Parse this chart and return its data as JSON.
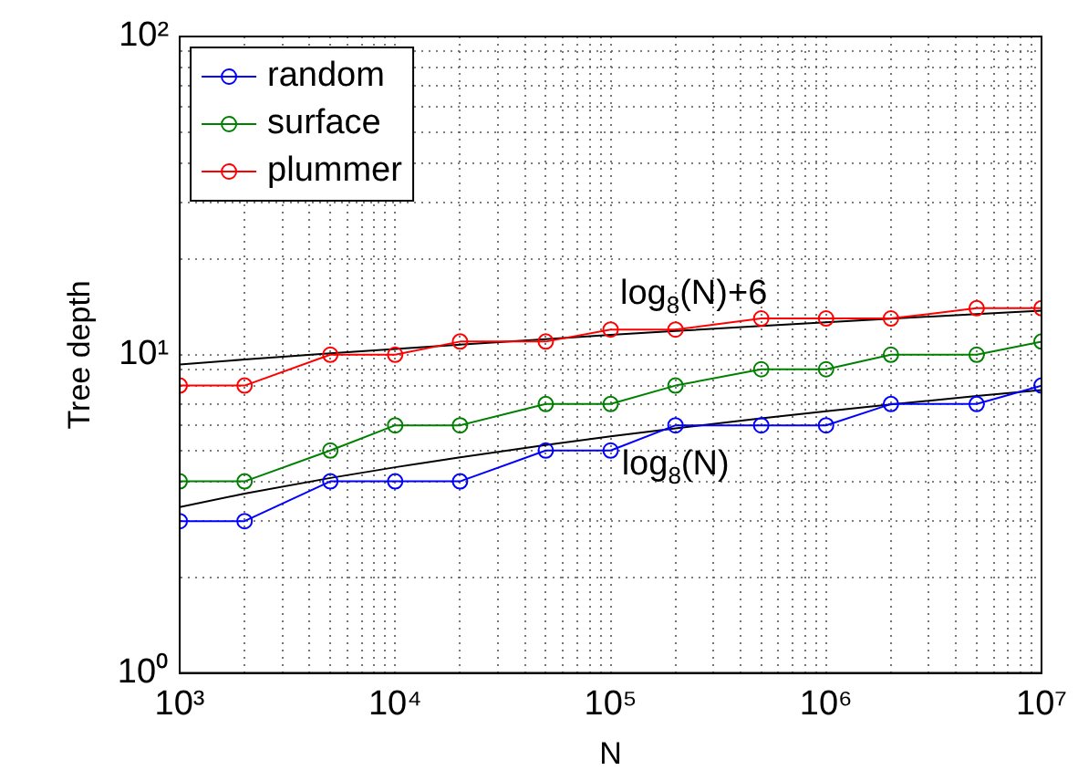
{
  "chart_data": {
    "type": "line",
    "xlabel": "N",
    "ylabel": "Tree depth",
    "log": "xy",
    "grid": true,
    "legend": "top left",
    "marker": "circle",
    "line_style": "solid",
    "x": [
      1000,
      2000,
      5000,
      10000,
      20000,
      50000,
      100000,
      200000,
      500000,
      1000000,
      2000000,
      5000000,
      10000000
    ],
    "xlim": [
      1000,
      10000000
    ],
    "ylim": [
      1,
      100
    ],
    "xticks": [
      {
        "value": 1000,
        "label": "10³"
      },
      {
        "value": 2000,
        "label": null
      },
      {
        "value": 3000,
        "label": null
      },
      {
        "value": 4000,
        "label": null
      },
      {
        "value": 5000,
        "label": null
      },
      {
        "value": 6000,
        "label": null
      },
      {
        "value": 7000,
        "label": null
      },
      {
        "value": 8000,
        "label": null
      },
      {
        "value": 9000,
        "label": null
      },
      {
        "value": 10000,
        "label": "10⁴"
      },
      {
        "value": 20000,
        "label": null
      },
      {
        "value": 30000,
        "label": null
      },
      {
        "value": 40000,
        "label": null
      },
      {
        "value": 50000,
        "label": null
      },
      {
        "value": 60000,
        "label": null
      },
      {
        "value": 70000,
        "label": null
      },
      {
        "value": 80000,
        "label": null
      },
      {
        "value": 90000,
        "label": null
      },
      {
        "value": 100000,
        "label": "10⁵"
      },
      {
        "value": 200000,
        "label": null
      },
      {
        "value": 300000,
        "label": null
      },
      {
        "value": 400000,
        "label": null
      },
      {
        "value": 500000,
        "label": null
      },
      {
        "value": 600000,
        "label": null
      },
      {
        "value": 700000,
        "label": null
      },
      {
        "value": 800000,
        "label": null
      },
      {
        "value": 900000,
        "label": null
      },
      {
        "value": 1000000,
        "label": "10⁶"
      },
      {
        "value": 2000000,
        "label": null
      },
      {
        "value": 3000000,
        "label": null
      },
      {
        "value": 4000000,
        "label": null
      },
      {
        "value": 5000000,
        "label": null
      },
      {
        "value": 6000000,
        "label": null
      },
      {
        "value": 7000000,
        "label": null
      },
      {
        "value": 8000000,
        "label": null
      },
      {
        "value": 9000000,
        "label": null
      },
      {
        "value": 10000000,
        "label": "10⁷"
      }
    ],
    "yticks": [
      {
        "value": 1,
        "label": "10⁰"
      },
      {
        "value": 2,
        "label": null
      },
      {
        "value": 3,
        "label": null
      },
      {
        "value": 4,
        "label": null
      },
      {
        "value": 5,
        "label": null
      },
      {
        "value": 6,
        "label": null
      },
      {
        "value": 7,
        "label": null
      },
      {
        "value": 8,
        "label": null
      },
      {
        "value": 9,
        "label": null
      },
      {
        "value": 10,
        "label": "10¹"
      },
      {
        "value": 20,
        "label": null
      },
      {
        "value": 30,
        "label": null
      },
      {
        "value": 40,
        "label": null
      },
      {
        "value": 50,
        "label": null
      },
      {
        "value": 60,
        "label": null
      },
      {
        "value": 70,
        "label": null
      },
      {
        "value": 80,
        "label": null
      },
      {
        "value": 90,
        "label": null
      },
      {
        "value": 100,
        "label": "10²"
      }
    ],
    "series": [
      {
        "name": "random",
        "color": "#0000ff",
        "values": [
          3,
          3,
          4,
          4,
          4,
          5,
          5,
          6,
          6,
          6,
          7,
          7,
          8
        ]
      },
      {
        "name": "surface",
        "color": "#008000",
        "values": [
          4,
          4,
          5,
          6,
          6,
          7,
          7,
          8,
          9,
          9,
          10,
          10,
          11
        ]
      },
      {
        "name": "plummer",
        "color": "#ff0000",
        "values": [
          8,
          8,
          10,
          10,
          11,
          11,
          12,
          12,
          13,
          13,
          13,
          14,
          14
        ]
      },
      {
        "name": "log$_{8}$(N)",
        "type": "line",
        "marker": "none",
        "color": "#000000",
        "values": [
          3.32,
          3.66,
          4.1,
          4.43,
          4.76,
          5.2,
          5.54,
          5.87,
          6.31,
          6.64,
          6.98,
          7.42,
          7.75
        ]
      },
      {
        "name": "log$_{8}$(N)+6",
        "type": "line",
        "marker": "none",
        "color": "#000000",
        "values": [
          9.32,
          9.66,
          10.1,
          10.43,
          10.76,
          11.2,
          11.54,
          11.87,
          12.31,
          12.64,
          12.98,
          13.42,
          13.75
        ]
      }
    ]
  }
}
